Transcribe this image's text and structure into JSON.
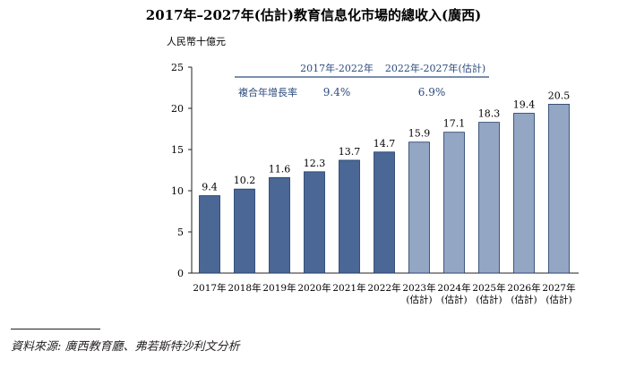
{
  "chart_data": {
    "type": "bar",
    "title": "2017年–2027年(估計)教育信息化市場的總收入(廣西)",
    "unit_label": "人民幣十億元",
    "categories": [
      [
        "2017年"
      ],
      [
        "2018年"
      ],
      [
        "2019年"
      ],
      [
        "2020年"
      ],
      [
        "2021年"
      ],
      [
        "2022年"
      ],
      [
        "2023年",
        "(估計)"
      ],
      [
        "2024年",
        "(估計)"
      ],
      [
        "2025年",
        "(估計)"
      ],
      [
        "2026年",
        "(估計)"
      ],
      [
        "2027年",
        "(估計)"
      ]
    ],
    "values": [
      9.4,
      10.2,
      11.6,
      12.3,
      13.7,
      14.7,
      15.9,
      17.1,
      18.3,
      19.4,
      20.5
    ],
    "value_labels": [
      "9.4",
      "10.2",
      "11.6",
      "12.3",
      "13.7",
      "14.7",
      "15.9",
      "17.1",
      "18.3",
      "19.4",
      "20.5"
    ],
    "estimated": [
      false,
      false,
      false,
      false,
      false,
      false,
      true,
      true,
      true,
      true,
      true
    ],
    "ylim": [
      0,
      25
    ],
    "yticks": [
      0,
      5,
      10,
      15,
      20,
      25
    ],
    "colors": {
      "actual": "#4a6796",
      "estimate": "#93a6c4",
      "border": "#1f3a66",
      "cagr": "#2b4a7c"
    },
    "cagr": {
      "row_label": "複合年增長率",
      "periods": [
        {
          "label": "2017年-2022年",
          "value": "9.4%"
        },
        {
          "label": "2022年-2027年(估計)",
          "value": "6.9%"
        }
      ]
    },
    "grid": false,
    "legend": "none"
  },
  "source": "資料來源:    廣西教育廳、弗若斯特沙利文分析"
}
